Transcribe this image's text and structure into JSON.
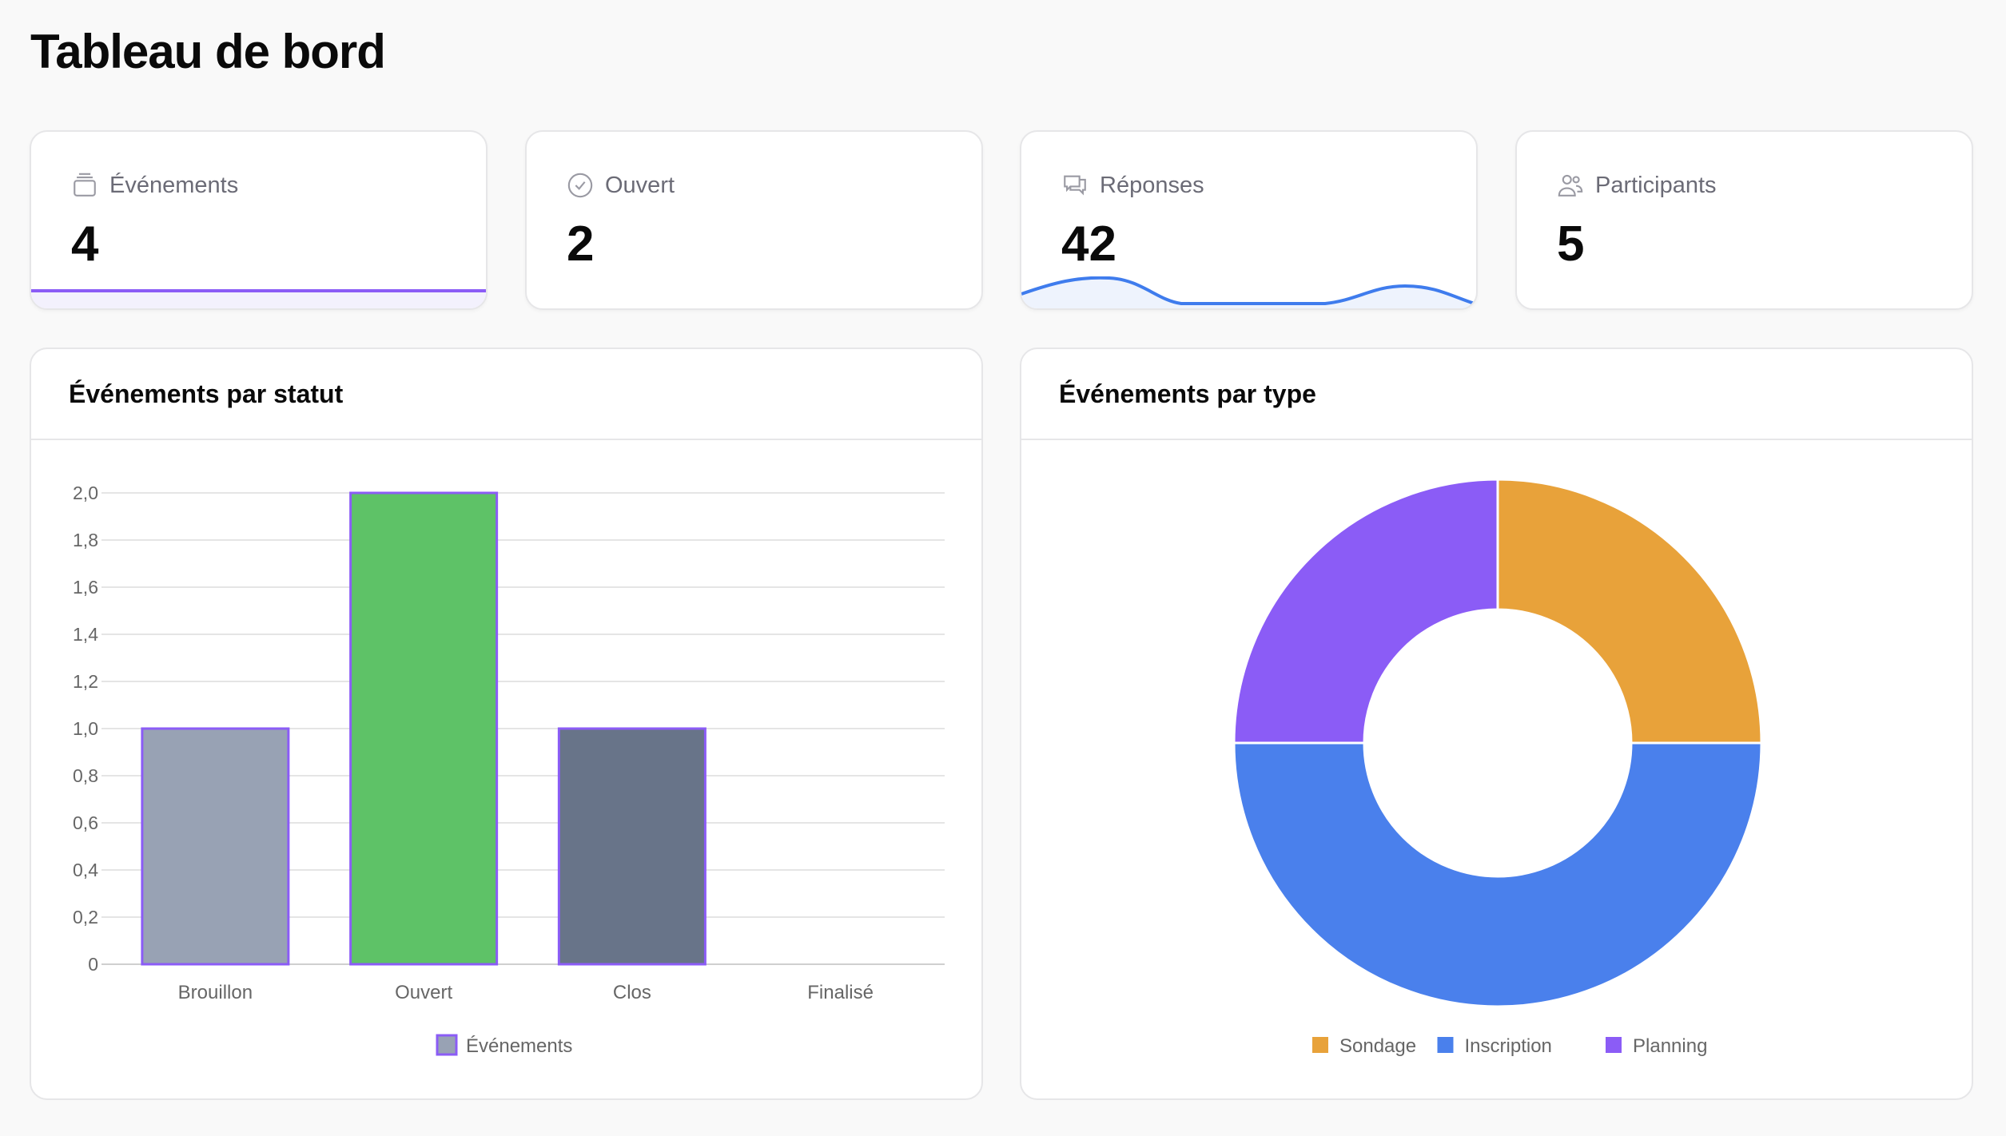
{
  "title": "Tableau de bord",
  "stats": [
    {
      "label": "Événements",
      "value": "4",
      "icon": "calendar-stack-icon"
    },
    {
      "label": "Ouvert",
      "value": "2",
      "icon": "check-circle-icon"
    },
    {
      "label": "Réponses",
      "value": "42",
      "icon": "chat-bubbles-icon"
    },
    {
      "label": "Participants",
      "value": "5",
      "icon": "users-icon"
    }
  ],
  "colors": {
    "accent": "#8b5cf6",
    "blue": "#4a80ec",
    "orange": "#e8a23a",
    "green": "#5ec267",
    "gray": "#98a2b4",
    "slate": "#687489"
  },
  "chart_data": [
    {
      "type": "bar",
      "title": "Événements par statut",
      "categories": [
        "Brouillon",
        "Ouvert",
        "Clos",
        "Finalisé"
      ],
      "series": [
        {
          "name": "Événements",
          "values": [
            1,
            2,
            1,
            0
          ]
        }
      ],
      "bar_colors": [
        "#98a2b4",
        "#5ec267",
        "#687489",
        "#e8a23a"
      ],
      "ylim": [
        0,
        2
      ],
      "yticks": [
        "0",
        "0,2",
        "0,4",
        "0,6",
        "0,8",
        "1,0",
        "1,2",
        "1,4",
        "1,6",
        "1,8",
        "2,0"
      ],
      "legend": "bottom",
      "grid": true
    },
    {
      "type": "pie",
      "title": "Événements par type",
      "labels": [
        "Sondage",
        "Inscription",
        "Planning"
      ],
      "values": [
        1,
        2,
        1
      ],
      "colors": [
        "#e8a23a",
        "#4a80ec",
        "#8b5cf6"
      ],
      "legend": "bottom"
    }
  ]
}
